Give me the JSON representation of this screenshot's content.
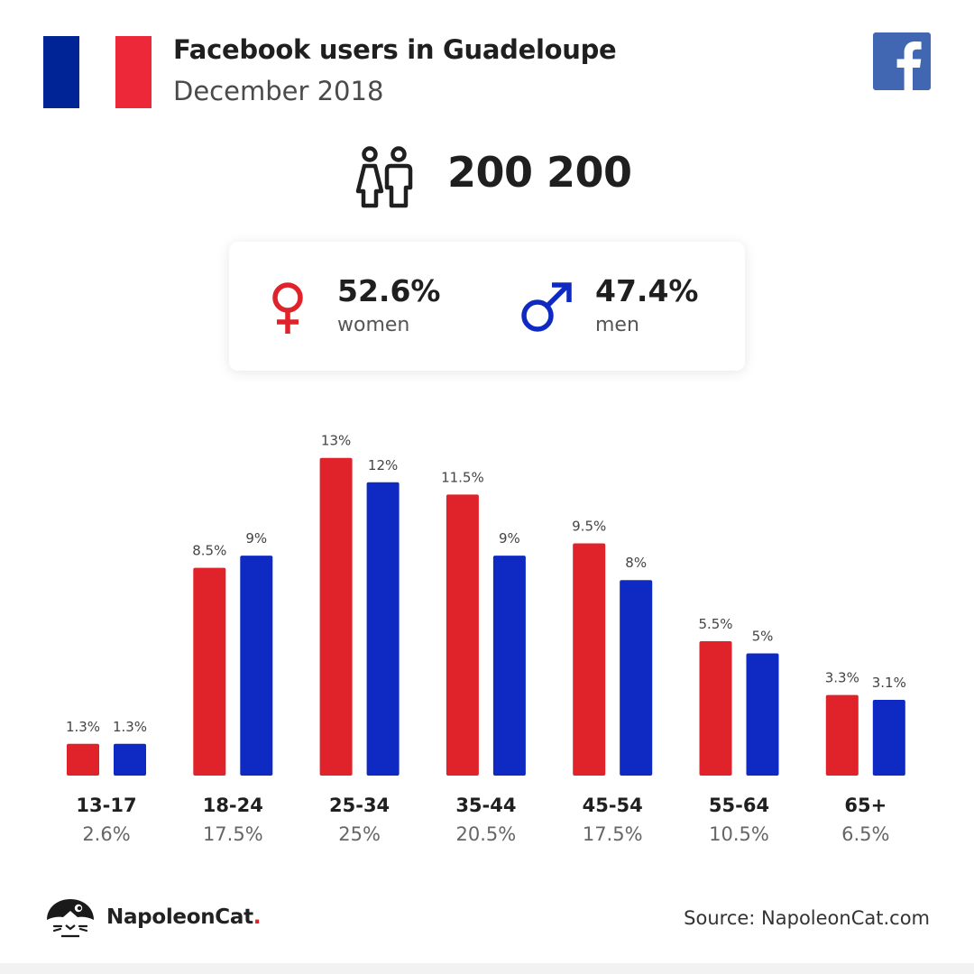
{
  "header": {
    "title": "Facebook users in Guadeloupe",
    "subtitle": "December 2018",
    "flag_colors": [
      "#002395",
      "#ffffff",
      "#ed2939"
    ],
    "flag_icon": "france-flag-icon",
    "social_icon": "facebook-logo-icon",
    "facebook_color": "#4267b2"
  },
  "summary": {
    "total_users": "200 200",
    "users_icon": "users-icon",
    "women": {
      "pct": "52.6%",
      "label": "women",
      "icon": "female-symbol-icon",
      "color": "#e0232b"
    },
    "men": {
      "pct": "47.4%",
      "label": "men",
      "icon": "male-symbol-icon",
      "color": "#0e2ac3"
    }
  },
  "chart_data": {
    "type": "bar",
    "categories": [
      "13-17",
      "18-24",
      "25-34",
      "35-44",
      "45-54",
      "55-64",
      "65+"
    ],
    "category_totals": [
      "2.6%",
      "17.5%",
      "25%",
      "20.5%",
      "17.5%",
      "10.5%",
      "6.5%"
    ],
    "series": [
      {
        "key": "women",
        "color": "#e0232b",
        "values": [
          1.3,
          8.5,
          13,
          11.5,
          9.5,
          5.5,
          3.3
        ],
        "labels": [
          "1.3%",
          "8.5%",
          "13%",
          "11.5%",
          "9.5%",
          "5.5%",
          "3.3%"
        ]
      },
      {
        "key": "men",
        "color": "#0e2ac3",
        "values": [
          1.3,
          9,
          12,
          9,
          8,
          5,
          3.1
        ],
        "labels": [
          "1.3%",
          "9%",
          "12%",
          "9%",
          "8%",
          "5%",
          "3.1%"
        ]
      }
    ],
    "ylim": [
      0,
      13
    ],
    "grid": false,
    "title": "",
    "xlabel": "",
    "ylabel": ""
  },
  "footer": {
    "brand_name": "NapoleonCat",
    "brand_dot": ".",
    "brand_icon": "napoleoncat-logo-icon",
    "source": "Source: NapoleonCat.com"
  }
}
